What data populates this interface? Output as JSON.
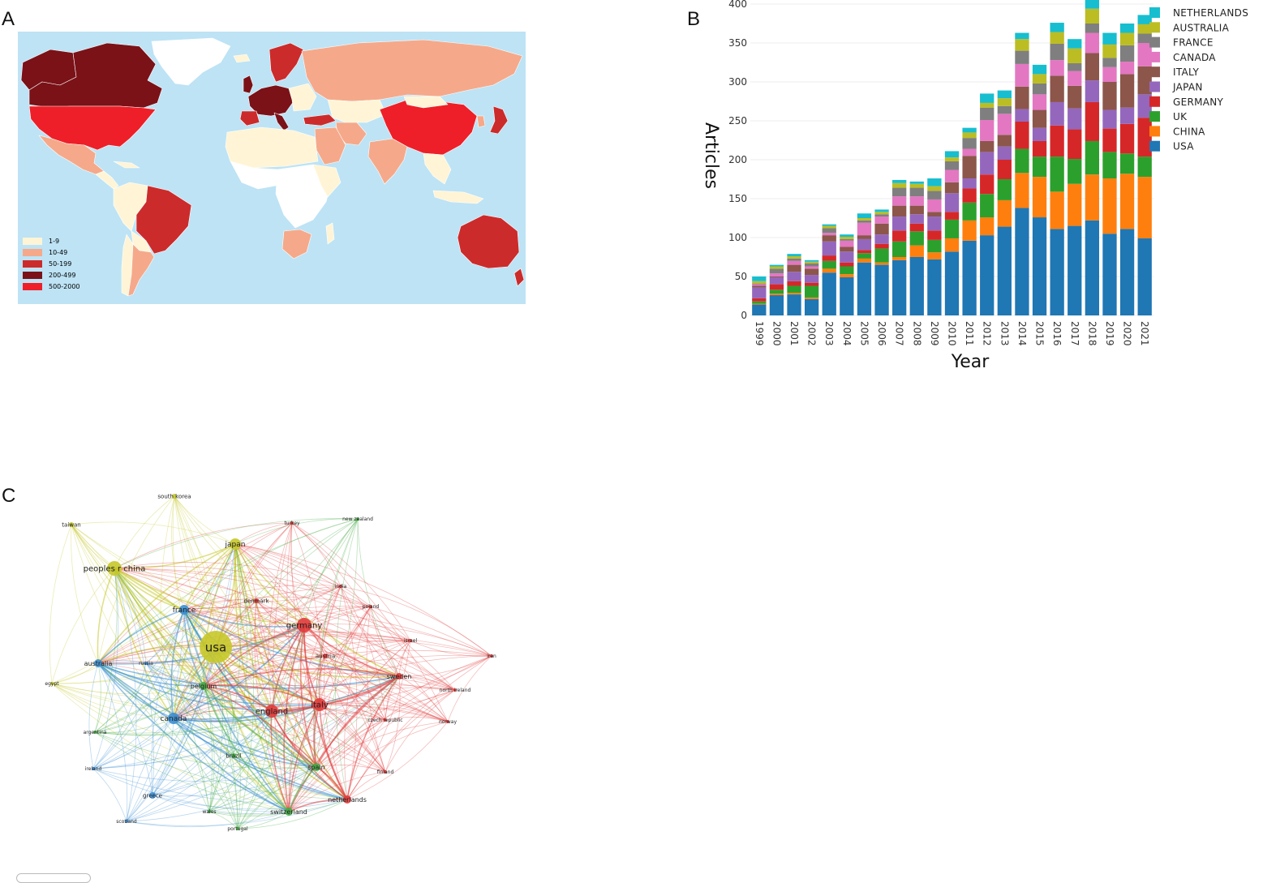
{
  "panels": {
    "a": "A",
    "b": "B",
    "c": "C"
  },
  "colors": {
    "ocean": "#bde3f5",
    "no_data": "#ffffff",
    "bin_1_9": "#fff5d6",
    "bin_10_49": "#f5a98a",
    "bin_50_199": "#cc2b2b",
    "bin_200_499": "#7a1218",
    "bin_500_2000": "#ee1f28"
  },
  "map": {
    "legend": [
      {
        "label": "1-9",
        "color": "#fff5d6"
      },
      {
        "label": "10-49",
        "color": "#f5a98a"
      },
      {
        "label": "50-199",
        "color": "#cc2b2b"
      },
      {
        "label": "200-499",
        "color": "#7a1218"
      },
      {
        "label": "500-2000",
        "color": "#ee1f28"
      }
    ]
  },
  "chart_data": {
    "type": "bar",
    "stacked": true,
    "xlabel": "Year",
    "ylabel": "Articles",
    "ylim": [
      0,
      400
    ],
    "yticks": [
      0,
      50,
      100,
      150,
      200,
      250,
      300,
      350,
      400
    ],
    "grid": true,
    "legend_position": "right",
    "categories": [
      "1999",
      "2000",
      "2001",
      "2002",
      "2003",
      "2004",
      "2005",
      "2006",
      "2007",
      "2008",
      "2009",
      "2010",
      "2011",
      "2012",
      "2013",
      "2014",
      "2015",
      "2016",
      "2017",
      "2018",
      "2019",
      "2020",
      "2021"
    ],
    "series": [
      {
        "name": "USA",
        "color": "#1f77b4",
        "values": [
          14,
          26,
          27,
          21,
          55,
          49,
          68,
          65,
          71,
          75,
          72,
          82,
          96,
          103,
          114,
          138,
          126,
          111,
          115,
          122,
          105,
          111,
          99
        ]
      },
      {
        "name": "CHINA",
        "color": "#ff7f0e",
        "values": [
          1,
          2,
          2,
          2,
          5,
          4,
          5,
          3,
          4,
          15,
          9,
          17,
          26,
          23,
          34,
          45,
          52,
          48,
          54,
          59,
          71,
          71,
          79
        ]
      },
      {
        "name": "UK",
        "color": "#2ca02c",
        "values": [
          3,
          5,
          9,
          15,
          10,
          10,
          7,
          18,
          20,
          18,
          16,
          24,
          23,
          30,
          27,
          31,
          26,
          45,
          32,
          43,
          34,
          26,
          26
        ]
      },
      {
        "name": "GERMANY",
        "color": "#d62728",
        "values": [
          4,
          7,
          6,
          4,
          7,
          5,
          4,
          6,
          14,
          10,
          12,
          10,
          18,
          25,
          25,
          35,
          20,
          40,
          38,
          50,
          30,
          38,
          50
        ]
      },
      {
        "name": "JAPAN",
        "color": "#9467bd",
        "values": [
          14,
          9,
          12,
          10,
          18,
          14,
          14,
          12,
          18,
          12,
          18,
          24,
          13,
          29,
          17,
          16,
          17,
          30,
          27,
          28,
          24,
          21,
          30
        ]
      },
      {
        "name": "ITALY",
        "color": "#8c564b",
        "values": [
          2,
          1,
          9,
          8,
          8,
          6,
          5,
          14,
          14,
          11,
          6,
          14,
          29,
          14,
          15,
          29,
          23,
          34,
          29,
          35,
          36,
          43,
          36
        ]
      },
      {
        "name": "CANADA",
        "color": "#e377c2",
        "values": [
          2,
          4,
          5,
          3,
          3,
          8,
          16,
          9,
          12,
          12,
          16,
          16,
          9,
          27,
          27,
          29,
          20,
          20,
          19,
          26,
          19,
          16,
          30
        ]
      },
      {
        "name": "FRANCE",
        "color": "#7f7f7f",
        "values": [
          1,
          6,
          3,
          4,
          6,
          2,
          3,
          3,
          11,
          11,
          11,
          11,
          14,
          16,
          10,
          17,
          14,
          21,
          10,
          12,
          12,
          21,
          12
        ]
      },
      {
        "name": "AUSTRALIA",
        "color": "#bcbd22",
        "values": [
          3,
          3,
          3,
          2,
          3,
          3,
          3,
          3,
          6,
          5,
          6,
          5,
          7,
          6,
          10,
          15,
          12,
          15,
          19,
          19,
          17,
          16,
          12
        ]
      },
      {
        "name": "NETHERLANDS",
        "color": "#17becf",
        "values": [
          6,
          2,
          3,
          2,
          2,
          3,
          6,
          3,
          4,
          3,
          10,
          8,
          6,
          12,
          10,
          8,
          12,
          12,
          12,
          15,
          15,
          12,
          12
        ]
      }
    ]
  },
  "network": {
    "clusters": {
      "yellow": "#c6c82a",
      "blue": "#3c8fd4",
      "red": "#e23b3b",
      "green": "#45ad45"
    },
    "nodes": [
      {
        "id": "usa",
        "label": "usa",
        "cluster": "yellow",
        "size": 20,
        "font": 15
      },
      {
        "id": "peoples r china",
        "label": "peoples r china",
        "cluster": "yellow",
        "size": 9,
        "font": 10
      },
      {
        "id": "japan",
        "label": "japan",
        "cluster": "yellow",
        "size": 7,
        "font": 9
      },
      {
        "id": "south korea",
        "label": "south korea",
        "cluster": "yellow",
        "size": 3,
        "font": 7
      },
      {
        "id": "taiwan",
        "label": "taiwan",
        "cluster": "yellow",
        "size": 3,
        "font": 7
      },
      {
        "id": "egypt",
        "label": "egypt",
        "cluster": "yellow",
        "size": 2,
        "font": 6
      },
      {
        "id": "france",
        "label": "france",
        "cluster": "blue",
        "size": 6,
        "font": 9
      },
      {
        "id": "australia",
        "label": "australia",
        "cluster": "blue",
        "size": 5,
        "font": 8
      },
      {
        "id": "canada",
        "label": "canada",
        "cluster": "blue",
        "size": 7,
        "font": 9
      },
      {
        "id": "greece",
        "label": "greece",
        "cluster": "blue",
        "size": 4,
        "font": 7
      },
      {
        "id": "scotland",
        "label": "scotland",
        "cluster": "blue",
        "size": 2,
        "font": 6
      },
      {
        "id": "ireland",
        "label": "ireland",
        "cluster": "blue",
        "size": 2,
        "font": 6
      },
      {
        "id": "argentina",
        "label": "argentina",
        "cluster": "green",
        "size": 2,
        "font": 6
      },
      {
        "id": "russia",
        "label": "russia",
        "cluster": "blue",
        "size": 2,
        "font": 6
      },
      {
        "id": "germany",
        "label": "germany",
        "cluster": "red",
        "size": 9,
        "font": 10
      },
      {
        "id": "england",
        "label": "england",
        "cluster": "red",
        "size": 8,
        "font": 10
      },
      {
        "id": "italy",
        "label": "italy",
        "cluster": "red",
        "size": 8,
        "font": 10
      },
      {
        "id": "denmark",
        "label": "denmark",
        "cluster": "red",
        "size": 3,
        "font": 7
      },
      {
        "id": "austria",
        "label": "austria",
        "cluster": "red",
        "size": 3,
        "font": 7
      },
      {
        "id": "sweden",
        "label": "sweden",
        "cluster": "red",
        "size": 4,
        "font": 8
      },
      {
        "id": "netherlands",
        "label": "netherlands",
        "cluster": "red",
        "size": 5,
        "font": 8
      },
      {
        "id": "poland",
        "label": "poland",
        "cluster": "red",
        "size": 2,
        "font": 6
      },
      {
        "id": "israel",
        "label": "israel",
        "cluster": "red",
        "size": 2,
        "font": 6
      },
      {
        "id": "iran",
        "label": "iran",
        "cluster": "red",
        "size": 2,
        "font": 6
      },
      {
        "id": "north ireland",
        "label": "north ireland",
        "cluster": "red",
        "size": 2,
        "font": 6
      },
      {
        "id": "norway",
        "label": "norway",
        "cluster": "red",
        "size": 2,
        "font": 6
      },
      {
        "id": "czech republic",
        "label": "czech republic",
        "cluster": "red",
        "size": 2,
        "font": 6
      },
      {
        "id": "finland",
        "label": "finland",
        "cluster": "red",
        "size": 2,
        "font": 6
      },
      {
        "id": "india",
        "label": "india",
        "cluster": "red",
        "size": 2,
        "font": 6
      },
      {
        "id": "turkey",
        "label": "turkey",
        "cluster": "red",
        "size": 2,
        "font": 6
      },
      {
        "id": "belgium",
        "label": "belgium",
        "cluster": "green",
        "size": 5,
        "font": 8
      },
      {
        "id": "brazil",
        "label": "brazil",
        "cluster": "green",
        "size": 3,
        "font": 7
      },
      {
        "id": "spain",
        "label": "spain",
        "cluster": "green",
        "size": 5,
        "font": 8
      },
      {
        "id": "switzerland",
        "label": "switzerland",
        "cluster": "green",
        "size": 5,
        "font": 8
      },
      {
        "id": "portugal",
        "label": "portugal",
        "cluster": "green",
        "size": 2,
        "font": 6
      },
      {
        "id": "wales",
        "label": "wales",
        "cluster": "green",
        "size": 2,
        "font": 6
      },
      {
        "id": "new zealand",
        "label": "new zealand",
        "cluster": "green",
        "size": 2,
        "font": 6
      }
    ]
  }
}
